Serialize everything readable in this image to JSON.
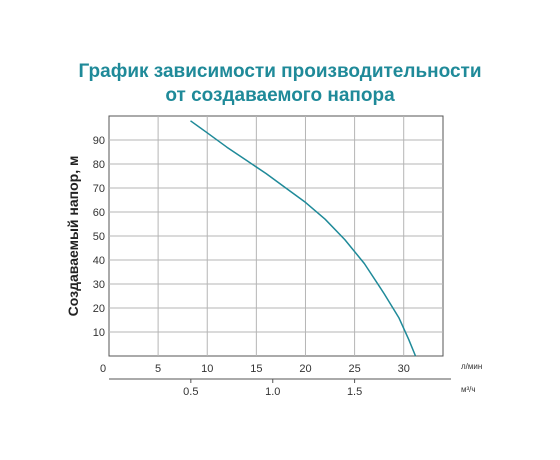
{
  "title_line1": "График зависимости производительности",
  "title_line2": "от создаваемого напора",
  "chart_data": {
    "type": "line",
    "title": "График зависимости производительности от создаваемого напора",
    "ylabel": "Создаваемый напор, м",
    "x_unit_lmin": "л/мин",
    "x_unit_m3h": "м³/ч",
    "xlim": [
      0,
      34
    ],
    "ylim": [
      0,
      100
    ],
    "x_ticks": [
      0,
      5,
      10,
      15,
      20,
      25,
      30
    ],
    "x2_ticks": [
      {
        "label": "0.5",
        "value_lmin": 8.33
      },
      {
        "label": "1.0",
        "value_lmin": 16.67
      },
      {
        "label": "1.5",
        "value_lmin": 25.0
      }
    ],
    "y_ticks": [
      10,
      20,
      30,
      40,
      50,
      60,
      70,
      80,
      90
    ],
    "grid": true,
    "line_color": "#1f8a99",
    "series": [
      {
        "name": "",
        "x": [
          8.3,
          10,
          12,
          14,
          16,
          18,
          20,
          22,
          24,
          26,
          28,
          29.5,
          30.5,
          31.2
        ],
        "y": [
          98,
          93,
          87,
          81.5,
          76,
          70,
          64,
          57,
          48.5,
          38.5,
          26,
          16,
          7,
          0
        ]
      }
    ]
  }
}
